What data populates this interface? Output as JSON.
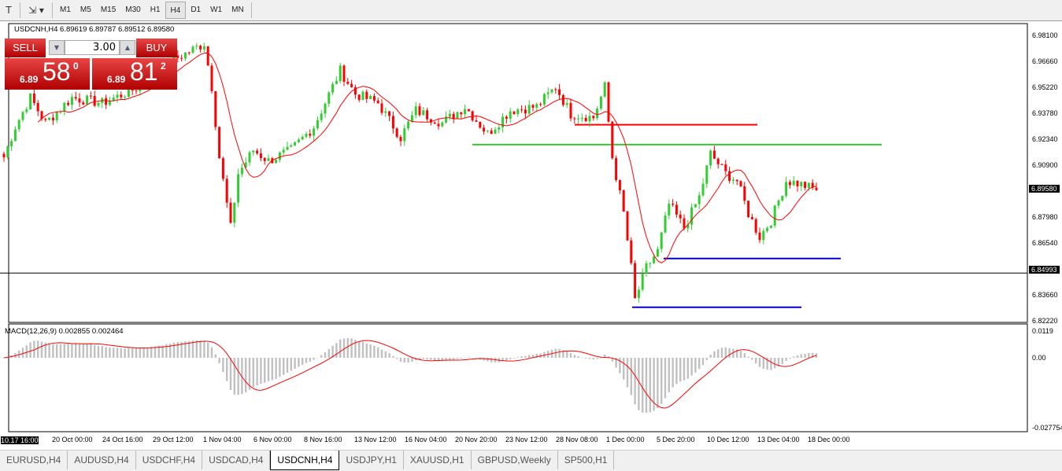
{
  "toolbar": {
    "timeframes": [
      "M1",
      "M5",
      "M15",
      "M30",
      "H1",
      "H4",
      "D1",
      "W1",
      "MN"
    ],
    "active": "H4"
  },
  "symbol": {
    "info": "USDCNH,H4  6.89619 6.89787 6.89512 6.89580"
  },
  "trade": {
    "sell": "SELL",
    "buy": "BUY",
    "lot": "3.00",
    "bid_big": "6.89",
    "bid_main": "58",
    "bid_sup": "0",
    "ask_big": "6.89",
    "ask_main": "81",
    "ask_sup": "2"
  },
  "price_axis": {
    "labels": [
      "6.98100",
      "6.96660",
      "6.95220",
      "6.93780",
      "6.92340",
      "6.90900",
      "6.87980",
      "6.86540",
      "6.83660",
      "6.82220"
    ],
    "current": "6.89580",
    "level": "6.84993"
  },
  "macd": {
    "label": "MACD(12,26,9) 0.002855 0.002464",
    "axis": [
      "0.0119",
      "0.00",
      "-0.027754"
    ]
  },
  "time_axis": [
    "10.17 16:00",
    "20 Oct 00:00",
    "24 Oct 16:00",
    "29 Oct 12:00",
    "1 Nov 04:00",
    "6 Nov 00:00",
    "8 Nov 16:00",
    "13 Nov 12:00",
    "16 Nov 04:00",
    "20 Nov 20:00",
    "23 Nov 12:00",
    "28 Nov 08:00",
    "1 Dec 00:00",
    "5 Dec 20:00",
    "10 Dec 12:00",
    "13 Dec 04:00",
    "18 Dec 00:00"
  ],
  "tabs": [
    "EURUSD,H4",
    "AUDUSD,H4",
    "USDCHF,H4",
    "USDCAD,H4",
    "USDCNH,H4",
    "USDJPY,H1",
    "XAUUSD,H1",
    "GBPUSD,Weekly",
    "SP500,H1"
  ],
  "active_tab": "USDCNH,H4",
  "colors": {
    "bull": "#32cd32",
    "bear": "#ff0000",
    "ma": "#ff0000",
    "macd_hist": "#c0c0c0",
    "macd_signal": "#ff0000"
  },
  "chart_data": {
    "type": "candlestick",
    "symbol": "USDCNH",
    "timeframe": "H4",
    "ylim": [
      6.8222,
      6.981
    ],
    "close_path": [
      [
        0,
        6.914
      ],
      [
        3,
        6.931
      ],
      [
        7,
        6.947
      ],
      [
        11,
        6.933
      ],
      [
        18,
        6.947
      ],
      [
        26,
        6.944
      ],
      [
        36,
        6.953
      ],
      [
        45,
        6.968
      ],
      [
        53,
        6.977
      ],
      [
        55,
        6.953
      ],
      [
        57,
        6.914
      ],
      [
        60,
        6.875
      ],
      [
        62,
        6.905
      ],
      [
        66,
        6.918
      ],
      [
        70,
        6.912
      ],
      [
        76,
        6.918
      ],
      [
        82,
        6.931
      ],
      [
        89,
        6.962
      ],
      [
        93,
        6.949
      ],
      [
        99,
        6.944
      ],
      [
        105,
        6.925
      ],
      [
        109,
        6.94
      ],
      [
        116,
        6.933
      ],
      [
        122,
        6.942
      ],
      [
        128,
        6.927
      ],
      [
        134,
        6.94
      ],
      [
        141,
        6.942
      ],
      [
        146,
        6.953
      ],
      [
        150,
        6.938
      ],
      [
        156,
        6.936
      ],
      [
        159,
        6.953
      ],
      [
        161,
        6.914
      ],
      [
        164,
        6.883
      ],
      [
        166,
        6.853
      ],
      [
        167,
        6.835
      ],
      [
        170,
        6.853
      ],
      [
        173,
        6.862
      ],
      [
        176,
        6.888
      ],
      [
        180,
        6.875
      ],
      [
        184,
        6.892
      ],
      [
        187,
        6.916
      ],
      [
        191,
        6.905
      ],
      [
        194,
        6.901
      ],
      [
        197,
        6.883
      ],
      [
        200,
        6.87
      ],
      [
        203,
        6.879
      ],
      [
        207,
        6.901
      ],
      [
        211,
        6.899
      ],
      [
        215,
        6.8958
      ]
    ],
    "horizontal_lines": [
      {
        "price": 6.932,
        "color": "#ff0000"
      },
      {
        "price": 6.921,
        "color": "#32cd32"
      },
      {
        "price": 6.858,
        "color": "#0000cc"
      },
      {
        "price": 6.831,
        "color": "#0000cc"
      },
      {
        "price": 6.84993,
        "color": "#000000"
      }
    ]
  }
}
